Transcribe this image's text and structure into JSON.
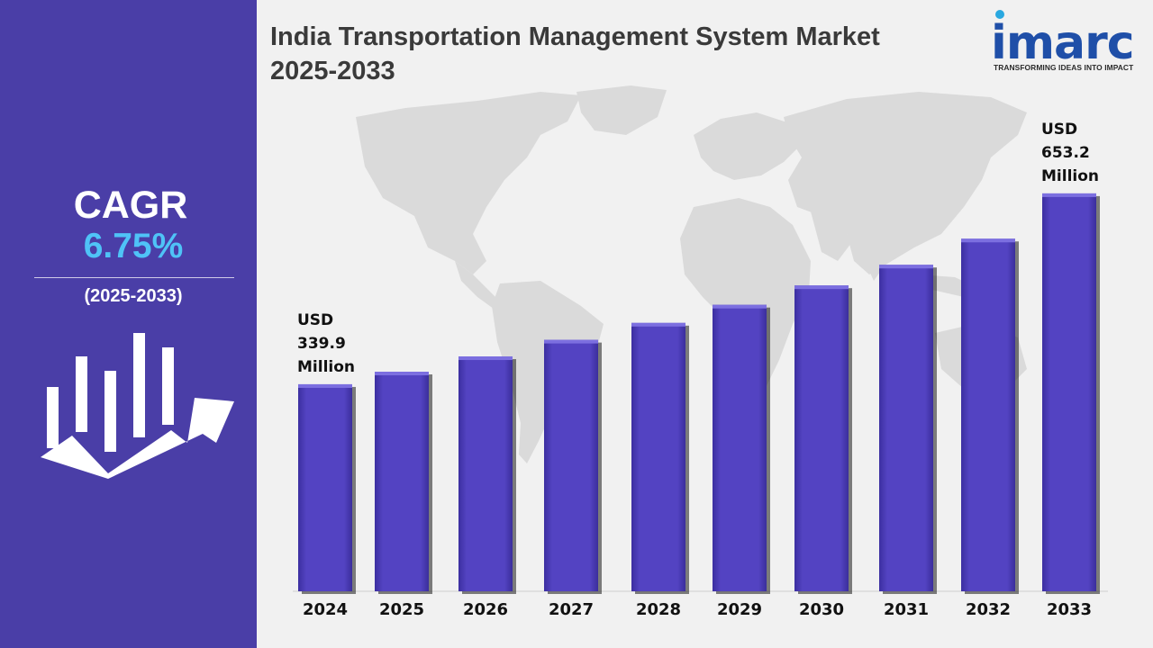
{
  "sidebar": {
    "cagr_label": "CAGR",
    "cagr_value": "6.75%",
    "period": "(2025-2033)",
    "icon": "bar-growth-arrow-icon"
  },
  "header": {
    "title_line1": "India Transportation Management System Market",
    "title_line2": "2025-2033"
  },
  "logo": {
    "wordmark": "imarc",
    "tagline": "TRANSFORMING IDEAS INTO IMPACT"
  },
  "colors": {
    "panel": "#4a3ea7",
    "bar": "#5040bd",
    "accent": "#4fc3f7",
    "map": "#d9d9d9"
  },
  "chart_data": {
    "type": "bar",
    "title": "India Transportation Management System Market 2025-2033",
    "categories": [
      "2024",
      "2025",
      "2026",
      "2027",
      "2028",
      "2029",
      "2030",
      "2031",
      "2032",
      "2033"
    ],
    "values": [
      339.9,
      360.5,
      385.6,
      412.8,
      440.6,
      470.3,
      502.1,
      536.0,
      578.8,
      653.2
    ],
    "unit": "USD Million",
    "annotations": [
      {
        "category": "2024",
        "lines": [
          "USD",
          "339.9",
          "Million"
        ]
      },
      {
        "category": "2033",
        "lines": [
          "USD",
          "653.2",
          "Million"
        ]
      }
    ],
    "ylim": [
      0,
      700
    ],
    "grid": false,
    "legend": "none"
  }
}
